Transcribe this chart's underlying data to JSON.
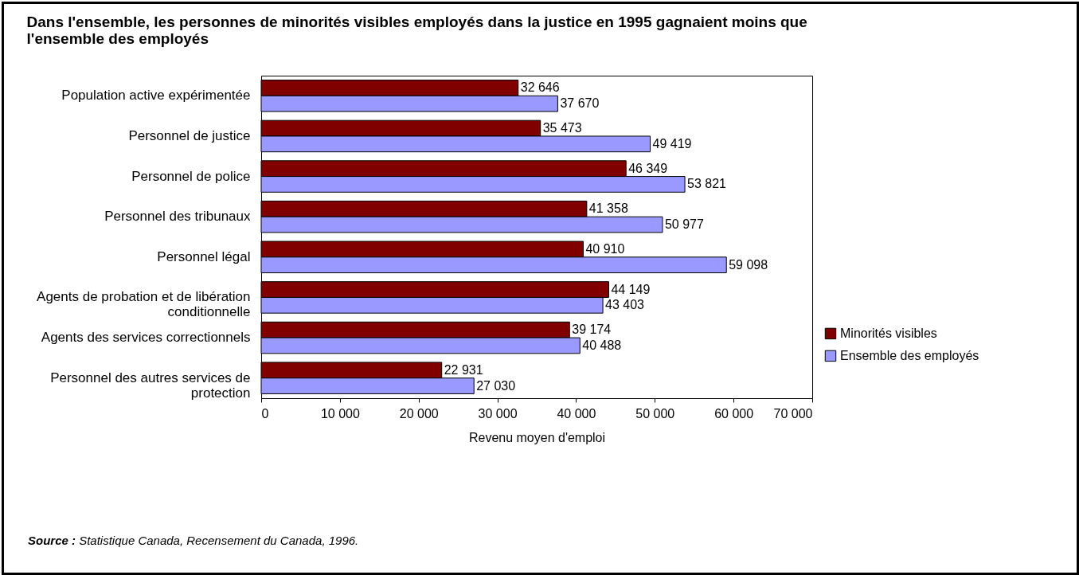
{
  "chart_data": {
    "type": "bar",
    "orientation": "horizontal",
    "title": "Dans l'ensemble, les personnes de minorités visibles employés dans la justice en 1995 gagnaient moins que l'ensemble des employés",
    "xlabel": "Revenu moyen d'emploi",
    "categories": [
      "Population active expérimentée",
      "Personnel de justice",
      "Personnel de police",
      "Personnel des tribunaux",
      "Personnel légal",
      "Agents de probation et de libération conditionnelle",
      "Agents des services correctionnels",
      "Personnel des autres services de protection"
    ],
    "series": [
      {
        "name": "Minorités visibles",
        "color": "#800000",
        "values": [
          32646,
          35473,
          46349,
          41358,
          40910,
          44149,
          39174,
          22931
        ],
        "value_labels": [
          "32 646",
          "35 473",
          "46 349",
          "41 358",
          "40 910",
          "44 149",
          "39 174",
          "22 931"
        ]
      },
      {
        "name": "Ensemble des employés",
        "color": "#9999ff",
        "values": [
          37670,
          49419,
          53821,
          50977,
          59098,
          43403,
          40488,
          27030
        ],
        "value_labels": [
          "37 670",
          "49 419",
          "53 821",
          "50 977",
          "59 098",
          "43 403",
          "40 488",
          "27 030"
        ]
      }
    ],
    "xlim": [
      0,
      70000
    ],
    "xticks": [
      0,
      {
        "value": 10000,
        "label": "10 000"
      },
      {
        "value": 20000,
        "label": "20 000"
      },
      {
        "value": 30000,
        "label": "30 000"
      },
      {
        "value": 40000,
        "label": "40 000"
      },
      {
        "value": 50000,
        "label": "50 000"
      },
      {
        "value": 60000,
        "label": "60 000"
      },
      {
        "value": 70000,
        "label": "70 000"
      }
    ],
    "grid": false,
    "legend": "right",
    "annotations": [
      "Source : Statistique Canada, Recensement du Canada, 1996."
    ]
  }
}
